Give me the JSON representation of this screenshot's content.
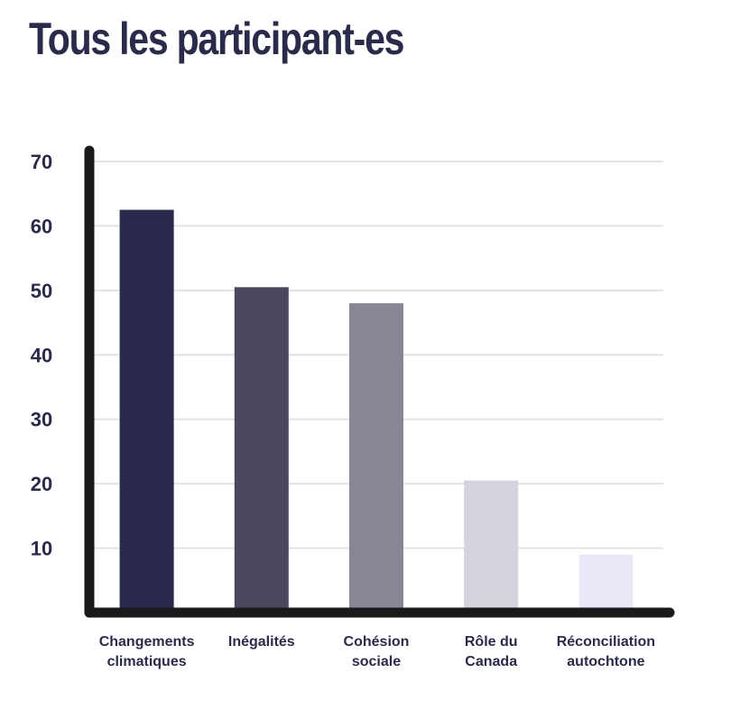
{
  "chart_data": {
    "type": "bar",
    "title": "Tous les participant-es",
    "xlabel": "",
    "ylabel": "",
    "categories": [
      [
        "Changements",
        "climatiques"
      ],
      [
        "Inégalités"
      ],
      [
        "Cohésion",
        "sociale"
      ],
      [
        "Rôle du",
        "Canada"
      ],
      [
        "Réconciliation",
        "autochtone"
      ]
    ],
    "values": [
      62.5,
      50.5,
      48,
      20.5,
      9
    ],
    "colors": [
      "#2a2a4e",
      "#4a4860",
      "#878694",
      "#d4d3de",
      "#e8e8f6"
    ],
    "ylim": [
      0,
      70
    ],
    "yticks": [
      10,
      20,
      30,
      40,
      50,
      60,
      70
    ],
    "grid": true,
    "axis_color": "#1a1a1a",
    "grid_color": "#e3e3e3",
    "text_color": "#2a2a4a"
  }
}
